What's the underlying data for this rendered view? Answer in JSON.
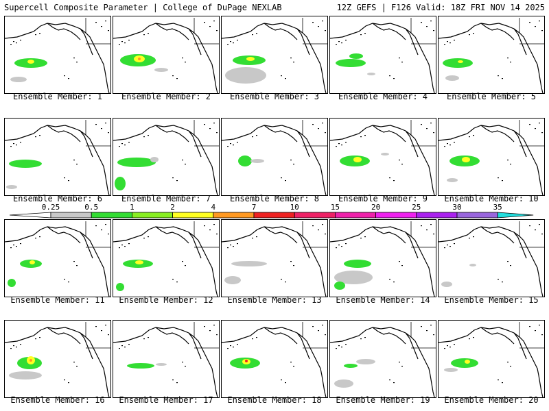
{
  "header": {
    "left": "Supercell Composite Parameter | College of DuPage NEXLAB",
    "right": "12Z GEFS | F126 Valid: 18Z FRI NOV 14 2025"
  },
  "legend": {
    "ticks": [
      "0.25",
      "0.5",
      "1",
      "2",
      "4",
      "7",
      "10",
      "15",
      "20",
      "25",
      "30",
      "35"
    ],
    "colors": [
      "#c8c8c8",
      "#33dd33",
      "#88ee22",
      "#ffff22",
      "#ff9922",
      "#ee2222",
      "#ee2266",
      "#ee22aa",
      "#ee22ee",
      "#aa22ee",
      "#9966dd",
      "#22dddd"
    ]
  },
  "panels": [
    {
      "caption": "Ensemble Member: 1",
      "blobs": [
        {
          "kind": "green",
          "cx": 38,
          "cy": 68,
          "rx": 24,
          "ry": 7
        },
        {
          "kind": "yellow",
          "cx": 38,
          "cy": 66,
          "rx": 5,
          "ry": 3
        },
        {
          "kind": "gray",
          "cx": 20,
          "cy": 92,
          "rx": 12,
          "ry": 4
        }
      ]
    },
    {
      "caption": "Ensemble Member: 2",
      "blobs": [
        {
          "kind": "green",
          "cx": 36,
          "cy": 64,
          "rx": 26,
          "ry": 9
        },
        {
          "kind": "yellow",
          "cx": 38,
          "cy": 62,
          "rx": 8,
          "ry": 5
        },
        {
          "kind": "orange",
          "cx": 38,
          "cy": 62,
          "rx": 2,
          "ry": 2
        },
        {
          "kind": "gray",
          "cx": 70,
          "cy": 78,
          "rx": 10,
          "ry": 3
        }
      ]
    },
    {
      "caption": "Ensemble Member: 3",
      "blobs": [
        {
          "kind": "gray",
          "cx": 35,
          "cy": 86,
          "rx": 30,
          "ry": 12
        },
        {
          "kind": "green",
          "cx": 40,
          "cy": 64,
          "rx": 24,
          "ry": 7
        },
        {
          "kind": "yellow",
          "cx": 42,
          "cy": 62,
          "rx": 6,
          "ry": 3
        }
      ]
    },
    {
      "caption": "Ensemble Member: 4",
      "blobs": [
        {
          "kind": "green",
          "cx": 30,
          "cy": 68,
          "rx": 22,
          "ry": 6
        },
        {
          "kind": "green",
          "cx": 38,
          "cy": 58,
          "rx": 10,
          "ry": 4
        },
        {
          "kind": "gray",
          "cx": 60,
          "cy": 84,
          "rx": 6,
          "ry": 2
        }
      ]
    },
    {
      "caption": "Ensemble Member: 5",
      "blobs": [
        {
          "kind": "green",
          "cx": 28,
          "cy": 68,
          "rx": 22,
          "ry": 7
        },
        {
          "kind": "yellow",
          "cx": 32,
          "cy": 66,
          "rx": 4,
          "ry": 2
        },
        {
          "kind": "gray",
          "cx": 20,
          "cy": 90,
          "rx": 10,
          "ry": 4
        }
      ]
    },
    {
      "caption": "Ensemble Member: 6",
      "blobs": [
        {
          "kind": "green",
          "cx": 30,
          "cy": 66,
          "rx": 24,
          "ry": 6
        },
        {
          "kind": "gray",
          "cx": 10,
          "cy": 100,
          "rx": 8,
          "ry": 3
        }
      ]
    },
    {
      "caption": "Ensemble Member: 7",
      "blobs": [
        {
          "kind": "green",
          "cx": 34,
          "cy": 64,
          "rx": 28,
          "ry": 7
        },
        {
          "kind": "gray",
          "cx": 60,
          "cy": 60,
          "rx": 6,
          "ry": 4
        },
        {
          "kind": "green",
          "cx": 10,
          "cy": 95,
          "rx": 8,
          "ry": 10
        }
      ]
    },
    {
      "caption": "Ensemble Member: 8",
      "blobs": [
        {
          "kind": "green",
          "cx": 34,
          "cy": 62,
          "rx": 10,
          "ry": 8
        },
        {
          "kind": "gray",
          "cx": 52,
          "cy": 62,
          "rx": 10,
          "ry": 3
        }
      ]
    },
    {
      "caption": "Ensemble Member: 9",
      "blobs": [
        {
          "kind": "green",
          "cx": 36,
          "cy": 62,
          "rx": 22,
          "ry": 8
        },
        {
          "kind": "yellow",
          "cx": 40,
          "cy": 60,
          "rx": 6,
          "ry": 4
        },
        {
          "kind": "gray",
          "cx": 80,
          "cy": 52,
          "rx": 6,
          "ry": 2
        }
      ]
    },
    {
      "caption": "Ensemble Member: 10",
      "blobs": [
        {
          "kind": "green",
          "cx": 38,
          "cy": 62,
          "rx": 22,
          "ry": 8
        },
        {
          "kind": "yellow",
          "cx": 40,
          "cy": 60,
          "rx": 6,
          "ry": 4
        },
        {
          "kind": "gray",
          "cx": 20,
          "cy": 90,
          "rx": 8,
          "ry": 3
        }
      ]
    },
    {
      "caption": "Ensemble Member: 11",
      "blobs": [
        {
          "kind": "green",
          "cx": 38,
          "cy": 64,
          "rx": 16,
          "ry": 6
        },
        {
          "kind": "yellow",
          "cx": 40,
          "cy": 62,
          "rx": 4,
          "ry": 3
        },
        {
          "kind": "green",
          "cx": 10,
          "cy": 92,
          "rx": 6,
          "ry": 6
        }
      ]
    },
    {
      "caption": "Ensemble Member: 12",
      "blobs": [
        {
          "kind": "green",
          "cx": 36,
          "cy": 64,
          "rx": 22,
          "ry": 6
        },
        {
          "kind": "yellow",
          "cx": 38,
          "cy": 62,
          "rx": 6,
          "ry": 3
        },
        {
          "kind": "green",
          "cx": 10,
          "cy": 98,
          "rx": 6,
          "ry": 6
        }
      ]
    },
    {
      "caption": "Ensemble Member: 13",
      "blobs": [
        {
          "kind": "gray",
          "cx": 40,
          "cy": 64,
          "rx": 26,
          "ry": 4
        },
        {
          "kind": "gray",
          "cx": 16,
          "cy": 88,
          "rx": 12,
          "ry": 6
        }
      ]
    },
    {
      "caption": "Ensemble Member: 14",
      "blobs": [
        {
          "kind": "green",
          "cx": 40,
          "cy": 64,
          "rx": 20,
          "ry": 6
        },
        {
          "kind": "gray",
          "cx": 34,
          "cy": 84,
          "rx": 28,
          "ry": 10
        },
        {
          "kind": "green",
          "cx": 14,
          "cy": 96,
          "rx": 8,
          "ry": 6
        }
      ]
    },
    {
      "caption": "Ensemble Member: 15",
      "blobs": [
        {
          "kind": "gray",
          "cx": 12,
          "cy": 94,
          "rx": 8,
          "ry": 4
        },
        {
          "kind": "gray",
          "cx": 50,
          "cy": 66,
          "rx": 5,
          "ry": 2
        }
      ]
    },
    {
      "caption": "Ensemble Member: 16",
      "blobs": [
        {
          "kind": "green",
          "cx": 36,
          "cy": 62,
          "rx": 18,
          "ry": 9
        },
        {
          "kind": "yellow",
          "cx": 38,
          "cy": 58,
          "rx": 6,
          "ry": 6
        },
        {
          "kind": "orange",
          "cx": 38,
          "cy": 58,
          "rx": 2,
          "ry": 2
        },
        {
          "kind": "gray",
          "cx": 30,
          "cy": 80,
          "rx": 24,
          "ry": 6
        }
      ]
    },
    {
      "caption": "Ensemble Member: 17",
      "blobs": [
        {
          "kind": "green",
          "cx": 40,
          "cy": 66,
          "rx": 20,
          "ry": 4
        },
        {
          "kind": "gray",
          "cx": 70,
          "cy": 64,
          "rx": 8,
          "ry": 2
        }
      ]
    },
    {
      "caption": "Ensemble Member: 18",
      "blobs": [
        {
          "kind": "green",
          "cx": 34,
          "cy": 62,
          "rx": 22,
          "ry": 8
        },
        {
          "kind": "yellow",
          "cx": 36,
          "cy": 60,
          "rx": 6,
          "ry": 4
        },
        {
          "kind": "red",
          "cx": 36,
          "cy": 59,
          "rx": 2,
          "ry": 2
        }
      ]
    },
    {
      "caption": "Ensemble Member: 19",
      "blobs": [
        {
          "kind": "gray",
          "cx": 52,
          "cy": 60,
          "rx": 14,
          "ry": 4
        },
        {
          "kind": "green",
          "cx": 30,
          "cy": 66,
          "rx": 10,
          "ry": 3
        },
        {
          "kind": "gray",
          "cx": 20,
          "cy": 92,
          "rx": 14,
          "ry": 6
        }
      ]
    },
    {
      "caption": "Ensemble Member: 20",
      "blobs": [
        {
          "kind": "green",
          "cx": 38,
          "cy": 62,
          "rx": 20,
          "ry": 7
        },
        {
          "kind": "yellow",
          "cx": 42,
          "cy": 60,
          "rx": 4,
          "ry": 3
        },
        {
          "kind": "gray",
          "cx": 18,
          "cy": 72,
          "rx": 10,
          "ry": 3
        }
      ]
    }
  ]
}
